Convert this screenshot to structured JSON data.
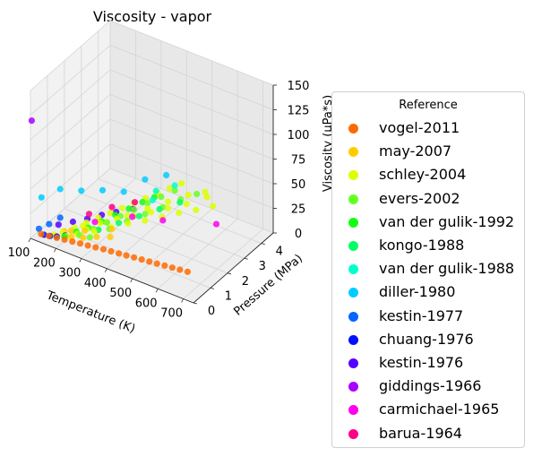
{
  "chart_data": {
    "type": "scatter",
    "title": "Viscosity - vapor",
    "xlabel": "Temperature (K)",
    "ylabel": "Pressure (MPa)",
    "zlabel": "Viscosity (μPa*s)",
    "xlim": [
      100,
      740
    ],
    "ylim": [
      0,
      4.7
    ],
    "zlim": [
      0,
      150
    ],
    "x_ticks": [
      "100",
      "200",
      "300",
      "400",
      "500",
      "600",
      "700"
    ],
    "y_ticks": [
      "0",
      "1",
      "2",
      "3",
      "4"
    ],
    "z_ticks": [
      "0",
      "25",
      "50",
      "75",
      "100",
      "125",
      "150"
    ],
    "legend_title": "Reference",
    "legend_position": "right",
    "grid": true,
    "series": [
      {
        "name": "vogel-2011",
        "color": "#ff6a00",
        "points": [
          [
            140,
            0.03,
            8
          ],
          [
            170,
            0.04,
            9
          ],
          [
            200,
            0.05,
            10
          ],
          [
            230,
            0.06,
            11
          ],
          [
            260,
            0.07,
            12
          ],
          [
            290,
            0.08,
            13
          ],
          [
            320,
            0.08,
            14
          ],
          [
            350,
            0.09,
            15
          ],
          [
            380,
            0.1,
            16
          ],
          [
            410,
            0.1,
            17
          ],
          [
            440,
            0.1,
            18
          ],
          [
            470,
            0.1,
            19
          ],
          [
            500,
            0.1,
            20
          ],
          [
            530,
            0.1,
            21
          ],
          [
            560,
            0.1,
            22
          ],
          [
            590,
            0.1,
            23
          ],
          [
            620,
            0.1,
            24
          ],
          [
            650,
            0.1,
            25
          ],
          [
            680,
            0.1,
            26
          ],
          [
            710,
            0.1,
            27
          ]
        ]
      },
      {
        "name": "may-2007",
        "color": "#ffcc00",
        "points": [
          [
            200,
            0.5,
            10
          ],
          [
            220,
            0.6,
            11
          ],
          [
            240,
            0.3,
            11
          ],
          [
            260,
            0.8,
            12
          ],
          [
            280,
            0.4,
            13
          ],
          [
            300,
            1.0,
            14
          ],
          [
            320,
            0.6,
            15
          ],
          [
            340,
            1.2,
            16
          ],
          [
            360,
            0.8,
            16
          ]
        ]
      },
      {
        "name": "schley-2004",
        "color": "#ddff00",
        "points": [
          [
            180,
            0.2,
            9
          ],
          [
            200,
            0.4,
            10
          ],
          [
            220,
            0.8,
            11
          ],
          [
            240,
            1.2,
            12
          ],
          [
            260,
            1.6,
            13
          ],
          [
            280,
            2.0,
            14
          ],
          [
            300,
            2.4,
            15
          ],
          [
            320,
            2.8,
            16
          ],
          [
            340,
            3.2,
            17
          ],
          [
            360,
            3.6,
            18
          ],
          [
            380,
            4.0,
            19
          ],
          [
            400,
            4.4,
            20
          ],
          [
            220,
            0.3,
            10
          ],
          [
            260,
            0.9,
            12
          ],
          [
            300,
            1.5,
            14
          ],
          [
            340,
            2.1,
            16
          ],
          [
            380,
            2.7,
            18
          ],
          [
            420,
            3.3,
            20
          ],
          [
            460,
            3.9,
            22
          ],
          [
            500,
            4.3,
            23
          ],
          [
            240,
            1.0,
            12
          ],
          [
            280,
            1.4,
            13
          ],
          [
            320,
            1.8,
            15
          ],
          [
            360,
            2.2,
            16
          ],
          [
            400,
            2.6,
            18
          ],
          [
            440,
            3.0,
            20
          ],
          [
            480,
            3.5,
            21
          ],
          [
            520,
            4.1,
            23
          ],
          [
            250,
            0.5,
            12
          ],
          [
            290,
            0.9,
            13
          ],
          [
            330,
            1.3,
            15
          ],
          [
            370,
            1.7,
            17
          ],
          [
            410,
            2.1,
            18
          ],
          [
            450,
            2.5,
            20
          ],
          [
            490,
            2.9,
            22
          ],
          [
            530,
            3.3,
            23
          ],
          [
            570,
            3.7,
            25
          ]
        ]
      },
      {
        "name": "evers-2002",
        "color": "#66ff22",
        "points": [
          [
            260,
            0.5,
            12
          ],
          [
            280,
            1.0,
            13
          ],
          [
            300,
            1.5,
            14
          ],
          [
            320,
            2.0,
            15
          ],
          [
            340,
            2.5,
            16
          ],
          [
            360,
            3.0,
            17
          ],
          [
            380,
            3.5,
            18
          ],
          [
            400,
            4.0,
            19
          ],
          [
            300,
            0.5,
            14
          ],
          [
            330,
            1.2,
            15
          ],
          [
            360,
            1.8,
            17
          ],
          [
            390,
            2.4,
            18
          ],
          [
            420,
            3.0,
            19
          ],
          [
            450,
            3.6,
            21
          ],
          [
            480,
            4.1,
            22
          ]
        ]
      },
      {
        "name": "van der gulik-1992",
        "color": "#11ff11",
        "points": [
          [
            220,
            0.2,
            11
          ],
          [
            240,
            0.6,
            12
          ],
          [
            260,
            1.0,
            12
          ],
          [
            280,
            1.5,
            13
          ],
          [
            300,
            2.0,
            14
          ],
          [
            320,
            2.5,
            15
          ],
          [
            340,
            3.0,
            16
          ],
          [
            360,
            3.4,
            17
          ]
        ]
      },
      {
        "name": "kongo-1988",
        "color": "#00ff66",
        "points": [
          [
            300,
            1.0,
            14
          ],
          [
            340,
            1.6,
            16
          ],
          [
            380,
            2.2,
            18
          ],
          [
            420,
            2.8,
            20
          ],
          [
            460,
            3.4,
            22
          ]
        ]
      },
      {
        "name": "van der gulik-1988",
        "color": "#00ffcc",
        "points": [
          [
            360,
            3.5,
            22
          ],
          [
            400,
            4.0,
            24
          ],
          [
            380,
            3.0,
            22
          ]
        ]
      },
      {
        "name": "diller-1980",
        "color": "#00ccff",
        "points": [
          [
            110,
            0.5,
            35
          ],
          [
            150,
            1.0,
            40
          ],
          [
            200,
            1.5,
            36
          ],
          [
            250,
            2.0,
            34
          ],
          [
            300,
            2.5,
            30
          ],
          [
            350,
            3.0,
            40
          ],
          [
            400,
            3.5,
            42
          ]
        ]
      },
      {
        "name": "kestin-1977",
        "color": "#0066ff",
        "points": [
          [
            130,
            0.05,
            12
          ],
          [
            140,
            0.5,
            11
          ],
          [
            150,
            1.0,
            11
          ]
        ]
      },
      {
        "name": "chuang-1976",
        "color": "#0011ff",
        "points": [
          [
            150,
            0.05,
            8
          ],
          [
            170,
            0.1,
            8
          ],
          [
            190,
            0.2,
            8
          ],
          [
            210,
            0.4,
            8
          ]
        ]
      },
      {
        "name": "kestin-1976",
        "color": "#5500ff",
        "points": [
          [
            170,
            0.6,
            12
          ],
          [
            200,
            1.0,
            12
          ],
          [
            230,
            1.4,
            12
          ],
          [
            260,
            1.8,
            13
          ],
          [
            290,
            2.2,
            13
          ],
          [
            330,
            2.6,
            14
          ]
        ]
      },
      {
        "name": "giddings-1966",
        "color": "#aa00ff",
        "points": [
          [
            105,
            0.0,
            120
          ]
        ]
      },
      {
        "name": "carmichael-1965",
        "color": "#ff00ee",
        "points": [
          [
            400,
            1.5,
            30
          ],
          [
            500,
            1.8,
            32
          ],
          [
            650,
            2.7,
            30
          ],
          [
            300,
            0.8,
            25
          ]
        ]
      },
      {
        "name": "barua-1964",
        "color": "#ff0088",
        "points": [
          [
            250,
            1.2,
            22
          ],
          [
            300,
            1.8,
            25
          ],
          [
            350,
            2.4,
            26
          ]
        ]
      }
    ]
  }
}
